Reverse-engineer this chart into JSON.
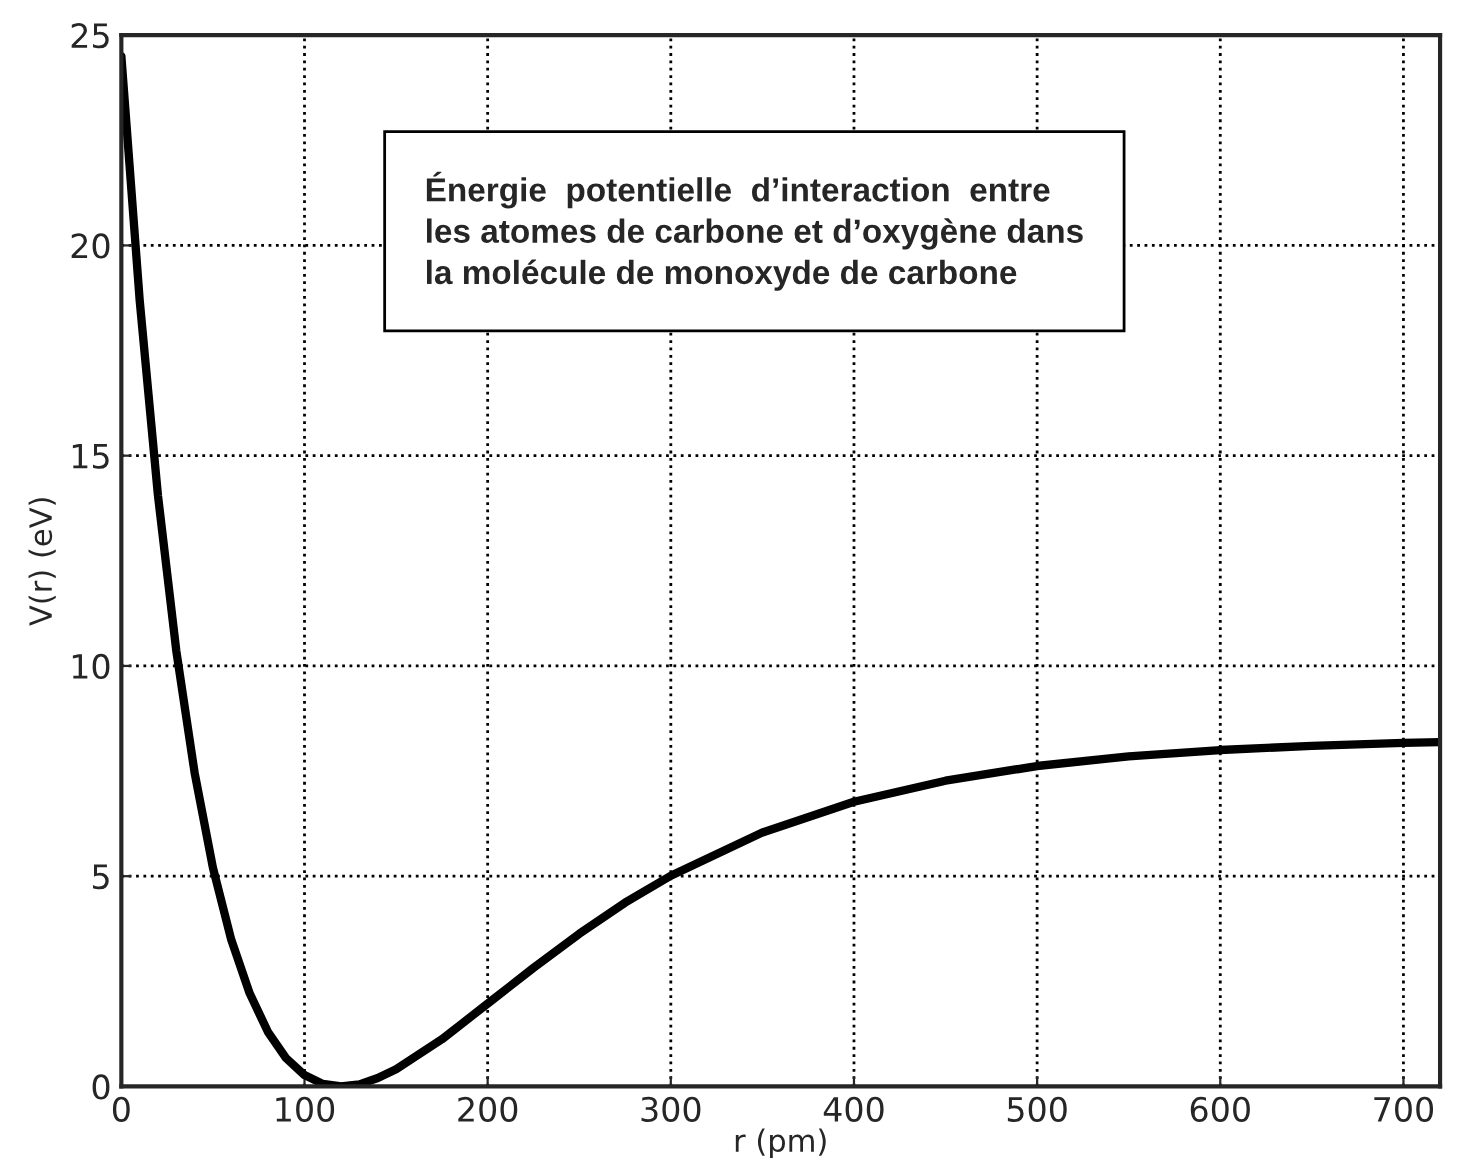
{
  "chart_data": {
    "type": "line",
    "xlabel": "r (pm)",
    "ylabel": "V(r) (eV)",
    "annotations": [
      "Énergie  potentielle  d’interaction  entre\nles atomes de carbone et d’oxygène dans\nla molécule de monoxyde de carbone"
    ],
    "x": [
      0,
      10,
      20,
      30,
      40,
      50,
      60,
      70,
      80,
      90,
      100,
      110,
      120,
      130,
      140,
      150,
      175,
      200,
      225,
      250,
      275,
      300,
      350,
      400,
      450,
      500,
      550,
      600,
      650,
      700,
      720
    ],
    "series": [
      {
        "color": "#000000",
        "values": [
          24.5,
          18.7,
          14.05,
          10.36,
          7.46,
          5.2,
          3.49,
          2.22,
          1.3,
          0.67,
          0.27,
          0.06,
          0,
          0.05,
          0.2,
          0.41,
          1.12,
          1.97,
          2.82,
          3.63,
          4.37,
          5.01,
          6.04,
          6.77,
          7.27,
          7.62,
          7.85,
          8.0,
          8.1,
          8.17,
          8.19
        ]
      }
    ],
    "xlim": [
      0,
      720
    ],
    "ylim": [
      0,
      25
    ],
    "xticks": [
      0,
      100,
      200,
      300,
      400,
      500,
      600,
      700
    ],
    "yticks": [
      0,
      5,
      10,
      15,
      20,
      25
    ],
    "grid": true,
    "line_style": "solid",
    "marker": "none"
  }
}
